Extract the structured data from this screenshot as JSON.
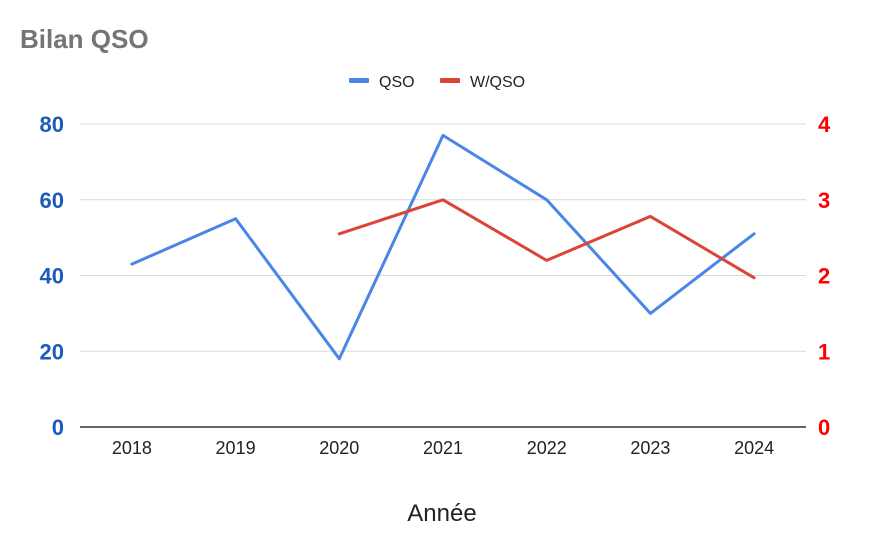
{
  "chart_data": {
    "type": "line",
    "title": "Bilan QSO",
    "xlabel": "Année",
    "ylabel": "",
    "y2label": "",
    "categories": [
      "2018",
      "2019",
      "2020",
      "2021",
      "2022",
      "2023",
      "2024"
    ],
    "ylim": [
      0,
      80
    ],
    "y2lim": [
      0,
      4
    ],
    "yticks": [
      "0",
      "20",
      "40",
      "60",
      "80"
    ],
    "y2ticks": [
      "0",
      "1",
      "2",
      "3",
      "4"
    ],
    "grid": true,
    "legend": "top",
    "series": [
      {
        "name": "QSO",
        "axis": "left",
        "color": "#4a86e8",
        "values": [
          43,
          55,
          18,
          77,
          60,
          30,
          51
        ]
      },
      {
        "name": "W/QSO",
        "axis": "right",
        "color": "#db4437",
        "values": [
          null,
          null,
          2.55,
          3.0,
          2.2,
          2.78,
          1.97
        ]
      }
    ],
    "colors": {
      "left_axis": "#1c5bb9",
      "right_axis": "#ff0000"
    }
  }
}
